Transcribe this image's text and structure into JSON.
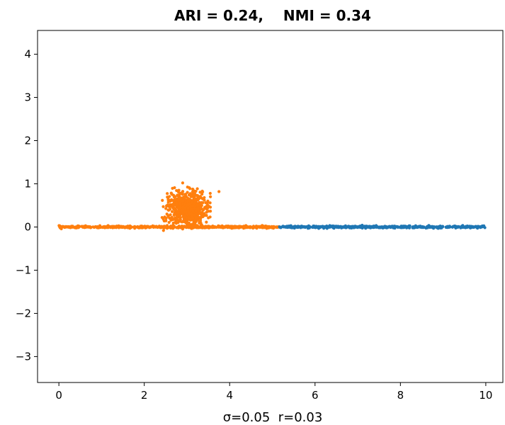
{
  "chart_data": {
    "type": "scatter",
    "title": "ARI = 0.24,    NMI = 0.34",
    "xlabel": "σ=0.05  r=0.03",
    "ylabel": "",
    "xlim": [
      -0.5,
      10.4
    ],
    "ylim": [
      -3.6,
      4.55
    ],
    "xticks": [
      0,
      2,
      4,
      6,
      8,
      10
    ],
    "yticks": [
      -3,
      -2,
      -1,
      0,
      1,
      2,
      3,
      4
    ],
    "grid": false,
    "legend": "none",
    "series": [
      {
        "color": "#ff7f0e",
        "segment": {
          "x_start": 0,
          "x_end": 5.15,
          "y": 0,
          "count": 520
        },
        "blob": {
          "center_x": 3.0,
          "center_y": 0.4,
          "spread_x": 0.22,
          "spread_y": 0.2,
          "count": 700
        },
        "outliers": [
          [
            3.75,
            0.82
          ],
          [
            2.9,
            1.02
          ],
          [
            2.45,
            -0.08
          ],
          [
            3.55,
            0.7
          ]
        ]
      },
      {
        "color": "#1f77b4",
        "segment": {
          "x_start": 5.15,
          "x_end": 10.0,
          "y": 0,
          "count": 520
        }
      }
    ]
  }
}
